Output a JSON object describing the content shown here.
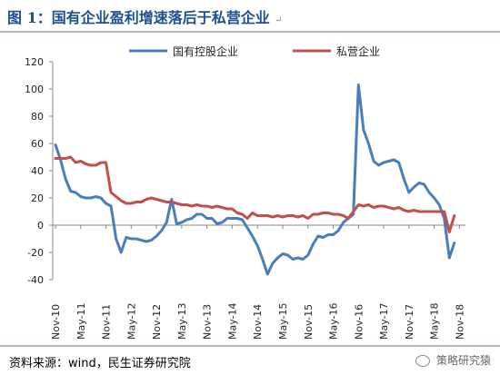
{
  "header": {
    "title": "图 1：国有企业盈利增速落后于私营企业",
    "mark": "↵"
  },
  "footer": {
    "source": "资料来源：wind，民生证券研究院",
    "brand": "策略研究猿"
  },
  "chart_data": {
    "type": "line",
    "title": "",
    "xlabel": "",
    "ylabel": "",
    "ylim": [
      -40,
      120
    ],
    "yticks": [
      -40,
      -20,
      0,
      20,
      40,
      60,
      80,
      100,
      120
    ],
    "grid": false,
    "legend": "top",
    "x": [
      "Nov-10",
      "May-11",
      "Nov-11",
      "May-12",
      "Nov-12",
      "May-13",
      "Nov-13",
      "May-14",
      "Nov-14",
      "May-15",
      "Nov-15",
      "May-16",
      "Nov-16",
      "May-17",
      "Nov-17",
      "May-18",
      "Nov-18"
    ],
    "series": [
      {
        "name": "国有控股企业",
        "color": "#4a7ebb",
        "points": [
          [
            0,
            59
          ],
          [
            1,
            48
          ],
          [
            2,
            34
          ],
          [
            3,
            25
          ],
          [
            4,
            24
          ],
          [
            5,
            21
          ],
          [
            6,
            20
          ],
          [
            7,
            20
          ],
          [
            8,
            21
          ],
          [
            9,
            20
          ],
          [
            10,
            16
          ],
          [
            11,
            14
          ],
          [
            12,
            -10
          ],
          [
            13,
            -20
          ],
          [
            14,
            -9
          ],
          [
            15,
            -10
          ],
          [
            16,
            -10
          ],
          [
            17,
            -11
          ],
          [
            18,
            -12
          ],
          [
            19,
            -11
          ],
          [
            20,
            -8
          ],
          [
            21,
            -4
          ],
          [
            22,
            2
          ],
          [
            23,
            19
          ],
          [
            24,
            1
          ],
          [
            25,
            2
          ],
          [
            26,
            4
          ],
          [
            27,
            5
          ],
          [
            28,
            8
          ],
          [
            29,
            8
          ],
          [
            30,
            5
          ],
          [
            31,
            5
          ],
          [
            32,
            1
          ],
          [
            33,
            2
          ],
          [
            34,
            5
          ],
          [
            35,
            5
          ],
          [
            36,
            5
          ],
          [
            37,
            4
          ],
          [
            38,
            -2
          ],
          [
            39,
            -8
          ],
          [
            40,
            -15
          ],
          [
            41,
            -25
          ],
          [
            42,
            -36
          ],
          [
            43,
            -28
          ],
          [
            44,
            -24
          ],
          [
            45,
            -21
          ],
          [
            46,
            -22
          ],
          [
            47,
            -25
          ],
          [
            48,
            -24
          ],
          [
            49,
            -25
          ],
          [
            50,
            -22
          ],
          [
            51,
            -14
          ],
          [
            52,
            -8
          ],
          [
            53,
            -9
          ],
          [
            54,
            -7
          ],
          [
            55,
            -7
          ],
          [
            56,
            -4
          ],
          [
            57,
            2
          ],
          [
            58,
            5
          ],
          [
            59,
            8
          ],
          [
            60,
            103
          ],
          [
            61,
            70
          ],
          [
            62,
            60
          ],
          [
            63,
            47
          ],
          [
            64,
            44
          ],
          [
            65,
            46
          ],
          [
            66,
            47
          ],
          [
            67,
            48
          ],
          [
            68,
            46
          ],
          [
            69,
            34
          ],
          [
            70,
            24
          ],
          [
            71,
            28
          ],
          [
            72,
            31
          ],
          [
            73,
            30
          ],
          [
            74,
            24
          ],
          [
            75,
            20
          ],
          [
            76,
            15
          ],
          [
            77,
            5
          ],
          [
            78,
            -24
          ],
          [
            79,
            -13
          ]
        ]
      },
      {
        "name": "私营企业",
        "color": "#c0504d",
        "points": [
          [
            0,
            49
          ],
          [
            1,
            49
          ],
          [
            2,
            49
          ],
          [
            3,
            50
          ],
          [
            4,
            46
          ],
          [
            5,
            47
          ],
          [
            6,
            45
          ],
          [
            7,
            44
          ],
          [
            8,
            44
          ],
          [
            9,
            46
          ],
          [
            10,
            46
          ],
          [
            11,
            24
          ],
          [
            12,
            21
          ],
          [
            13,
            18
          ],
          [
            14,
            16
          ],
          [
            15,
            16
          ],
          [
            16,
            17
          ],
          [
            17,
            17
          ],
          [
            18,
            19
          ],
          [
            19,
            20
          ],
          [
            20,
            19
          ],
          [
            21,
            18
          ],
          [
            22,
            17
          ],
          [
            23,
            17
          ],
          [
            24,
            16
          ],
          [
            25,
            15
          ],
          [
            26,
            15
          ],
          [
            27,
            14
          ],
          [
            28,
            15
          ],
          [
            29,
            14
          ],
          [
            30,
            14
          ],
          [
            31,
            13
          ],
          [
            32,
            14
          ],
          [
            33,
            13
          ],
          [
            34,
            12
          ],
          [
            35,
            12
          ],
          [
            36,
            9
          ],
          [
            37,
            8
          ],
          [
            38,
            5
          ],
          [
            39,
            9
          ],
          [
            40,
            7
          ],
          [
            41,
            7
          ],
          [
            42,
            7
          ],
          [
            43,
            6
          ],
          [
            44,
            7
          ],
          [
            45,
            6
          ],
          [
            46,
            7
          ],
          [
            47,
            7
          ],
          [
            48,
            6
          ],
          [
            49,
            7
          ],
          [
            50,
            5
          ],
          [
            51,
            8
          ],
          [
            52,
            8
          ],
          [
            53,
            9
          ],
          [
            54,
            9
          ],
          [
            55,
            8
          ],
          [
            56,
            8
          ],
          [
            57,
            7
          ],
          [
            58,
            5
          ],
          [
            59,
            10
          ],
          [
            60,
            15
          ],
          [
            61,
            14
          ],
          [
            62,
            15
          ],
          [
            63,
            13
          ],
          [
            64,
            14
          ],
          [
            65,
            14
          ],
          [
            66,
            13
          ],
          [
            67,
            12
          ],
          [
            68,
            13
          ],
          [
            69,
            11
          ],
          [
            70,
            10
          ],
          [
            71,
            11
          ],
          [
            72,
            10
          ],
          [
            73,
            10
          ],
          [
            74,
            10
          ],
          [
            75,
            10
          ],
          [
            76,
            10
          ],
          [
            77,
            10
          ],
          [
            78,
            -5
          ],
          [
            79,
            7
          ]
        ]
      }
    ]
  }
}
